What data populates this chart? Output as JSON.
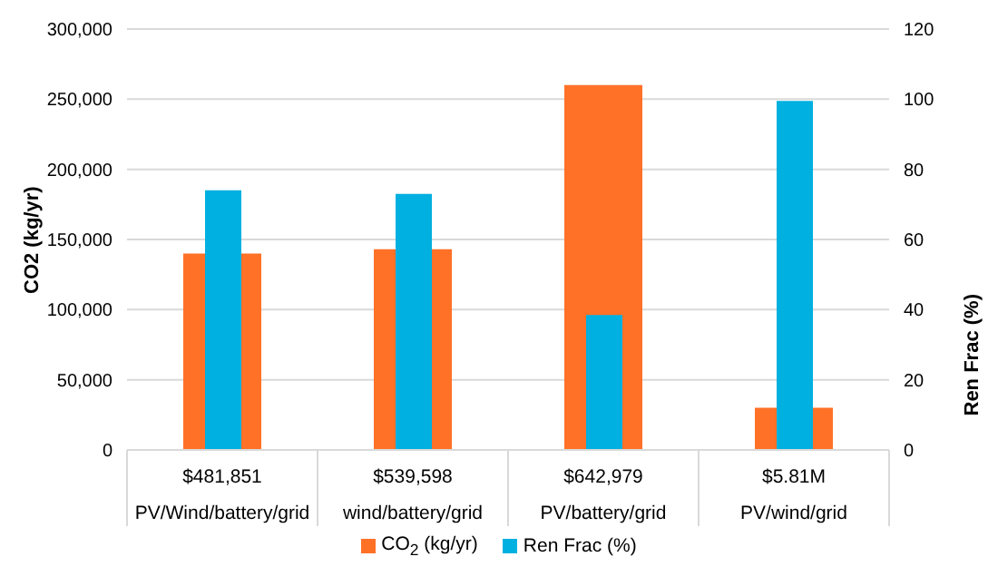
{
  "chart_data": {
    "type": "bar",
    "categories": [
      "$481,851\nPV/Wind/battery/grid",
      "$539,598\nwind/battery/grid",
      "$642,979\nPV/battery/grid",
      "$5.81M\nPV/wind/grid"
    ],
    "series": [
      {
        "name": "CO$_{2}$ (kg/yr)",
        "color": "#ff7127",
        "values": [
          140000,
          143000,
          260000,
          30000
        ]
      },
      {
        "name": "Ren Frac (%)",
        "color": "#00b0e0",
        "values": [
          74,
          73,
          38.5,
          99.5
        ],
        "axis": "y2"
      }
    ],
    "ylabel": "CO2 (kg/yr)",
    "y2label": "Ren Frac (%)",
    "ylim": [
      0,
      300000
    ],
    "yticks": [
      {
        "value": 0,
        "label": "0"
      },
      {
        "value": 50000,
        "label": "50,000"
      },
      {
        "value": 100000,
        "label": "100,000"
      },
      {
        "value": 150000,
        "label": "150,000"
      },
      {
        "value": 200000,
        "label": "200,000"
      },
      {
        "value": 250000,
        "label": "250,000"
      },
      {
        "value": 300000,
        "label": "300,000"
      }
    ],
    "y2lim": [
      0,
      120
    ],
    "y2ticks": [
      0,
      20,
      40,
      60,
      80,
      100,
      120
    ],
    "grid": "y",
    "legend": "bottom"
  }
}
